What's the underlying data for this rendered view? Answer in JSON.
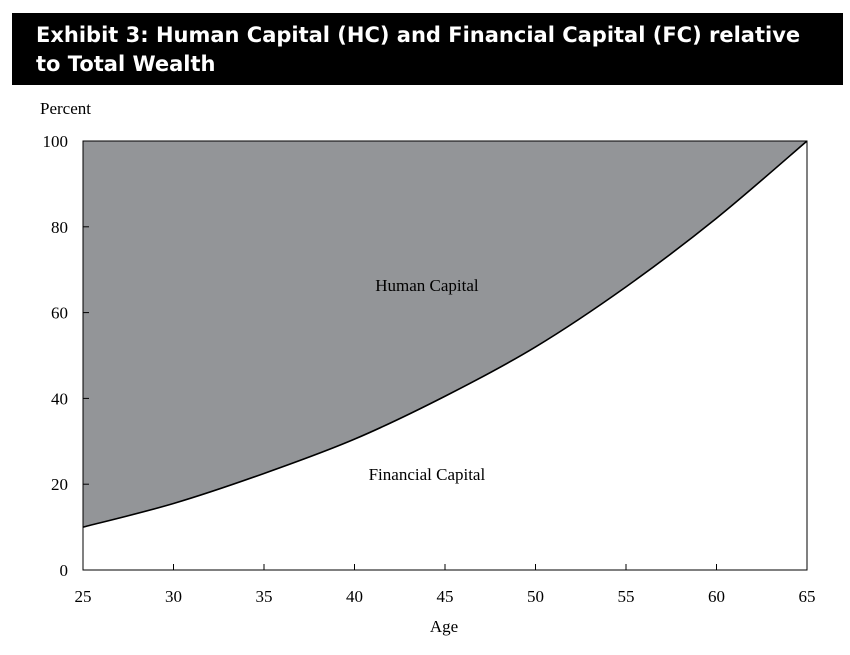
{
  "title": "Exhibit 3: Human Capital (HC) and Financial Capital (FC) relative to Total Wealth",
  "chart_data": {
    "type": "area",
    "title": "Exhibit 3: Human Capital (HC) and Financial Capital (FC) relative to Total Wealth",
    "xlabel": "Age",
    "ylabel": "Percent",
    "xlim": [
      25,
      65
    ],
    "ylim": [
      0,
      100
    ],
    "xticks": [
      25,
      30,
      35,
      40,
      45,
      50,
      55,
      60,
      65
    ],
    "yticks": [
      0,
      20,
      40,
      60,
      80,
      100
    ],
    "grid": false,
    "series": [
      {
        "name": "Financial Capital",
        "color": "#ffffff",
        "x": [
          25,
          30,
          35,
          40,
          45,
          50,
          55,
          60,
          65
        ],
        "y": [
          10,
          15.5,
          22.5,
          30.5,
          40.5,
          52,
          66,
          82,
          100
        ]
      },
      {
        "name": "Human Capital",
        "color": "#939598",
        "x": [
          25,
          30,
          35,
          40,
          45,
          50,
          55,
          60,
          65
        ],
        "y": [
          90,
          84.5,
          77.5,
          69.5,
          59.5,
          48,
          34,
          18,
          0
        ]
      }
    ],
    "annotations": [
      {
        "text": "Human Capital",
        "x": 44,
        "y": 65
      },
      {
        "text": "Financial Capital",
        "x": 44,
        "y": 21
      }
    ]
  }
}
